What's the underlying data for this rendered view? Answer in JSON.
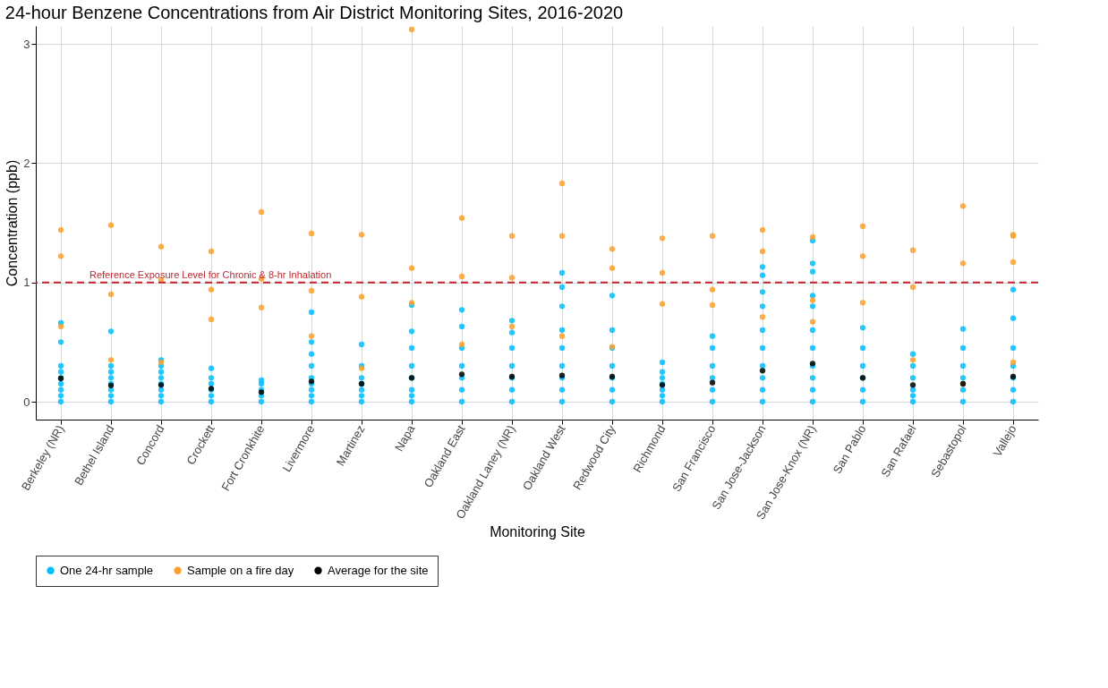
{
  "chart_data": {
    "type": "scatter",
    "title": "24-hour Benzene Concentrations from Air District Monitoring Sites, 2016-2020",
    "xlabel": "Monitoring Site",
    "ylabel": "Concentration (ppb)",
    "categories": [
      "Berkeley (NR)",
      "Bethel Island",
      "Concord",
      "Crockett",
      "Fort Cronkhite",
      "Livermore",
      "Martinez",
      "Napa",
      "Oakland East",
      "Oakland Laney (NR)",
      "Oakland West",
      "Redwood City",
      "Richmond",
      "San Francisco",
      "San Jose-Jackson",
      "San Jose-Knox (NR)",
      "San Pablo",
      "San Rafael",
      "Sebastopol",
      "Vallejo"
    ],
    "ylim": [
      -0.15,
      3.15
    ],
    "yticks": [
      0,
      1,
      2,
      3
    ],
    "grid": true,
    "legend": "bottom",
    "marker": "circle",
    "ref_lines": [
      {
        "axis": "y",
        "value": 1,
        "label": "Reference Exposure Level for Chronic & 8-hr Inhalation",
        "color": "#c0282d",
        "line_style": "dashed"
      }
    ],
    "series": [
      {
        "name": "One 24-hr sample",
        "color": "#00bfff",
        "x": [
          "Berkeley (NR)",
          "Berkeley (NR)",
          "Berkeley (NR)",
          "Berkeley (NR)",
          "Berkeley (NR)",
          "Berkeley (NR)",
          "Berkeley (NR)",
          "Berkeley (NR)",
          "Berkeley (NR)",
          "Bethel Island",
          "Bethel Island",
          "Bethel Island",
          "Bethel Island",
          "Bethel Island",
          "Bethel Island",
          "Bethel Island",
          "Bethel Island",
          "Concord",
          "Concord",
          "Concord",
          "Concord",
          "Concord",
          "Concord",
          "Concord",
          "Concord",
          "Crockett",
          "Crockett",
          "Crockett",
          "Crockett",
          "Crockett",
          "Crockett",
          "Fort Cronkhite",
          "Fort Cronkhite",
          "Fort Cronkhite",
          "Fort Cronkhite",
          "Fort Cronkhite",
          "Livermore",
          "Livermore",
          "Livermore",
          "Livermore",
          "Livermore",
          "Livermore",
          "Livermore",
          "Livermore",
          "Livermore",
          "Martinez",
          "Martinez",
          "Martinez",
          "Martinez",
          "Martinez",
          "Martinez",
          "Martinez",
          "Napa",
          "Napa",
          "Napa",
          "Napa",
          "Napa",
          "Napa",
          "Napa",
          "Napa",
          "Oakland East",
          "Oakland East",
          "Oakland East",
          "Oakland East",
          "Oakland East",
          "Oakland East",
          "Oakland East",
          "Oakland Laney (NR)",
          "Oakland Laney (NR)",
          "Oakland Laney (NR)",
          "Oakland Laney (NR)",
          "Oakland Laney (NR)",
          "Oakland Laney (NR)",
          "Oakland Laney (NR)",
          "Oakland West",
          "Oakland West",
          "Oakland West",
          "Oakland West",
          "Oakland West",
          "Oakland West",
          "Oakland West",
          "Oakland West",
          "Oakland West",
          "Redwood City",
          "Redwood City",
          "Redwood City",
          "Redwood City",
          "Redwood City",
          "Redwood City",
          "Redwood City",
          "Richmond",
          "Richmond",
          "Richmond",
          "Richmond",
          "Richmond",
          "Richmond",
          "Richmond",
          "San Francisco",
          "San Francisco",
          "San Francisco",
          "San Francisco",
          "San Francisco",
          "San Francisco",
          "San Jose-Jackson",
          "San Jose-Jackson",
          "San Jose-Jackson",
          "San Jose-Jackson",
          "San Jose-Jackson",
          "San Jose-Jackson",
          "San Jose-Jackson",
          "San Jose-Jackson",
          "San Jose-Jackson",
          "San Jose-Jackson",
          "San Jose-Knox (NR)",
          "San Jose-Knox (NR)",
          "San Jose-Knox (NR)",
          "San Jose-Knox (NR)",
          "San Jose-Knox (NR)",
          "San Jose-Knox (NR)",
          "San Jose-Knox (NR)",
          "San Jose-Knox (NR)",
          "San Jose-Knox (NR)",
          "San Jose-Knox (NR)",
          "San Jose-Knox (NR)",
          "San Pablo",
          "San Pablo",
          "San Pablo",
          "San Pablo",
          "San Pablo",
          "San Pablo",
          "San Rafael",
          "San Rafael",
          "San Rafael",
          "San Rafael",
          "San Rafael",
          "San Rafael",
          "Sebastopol",
          "Sebastopol",
          "Sebastopol",
          "Sebastopol",
          "Sebastopol",
          "Sebastopol",
          "Vallejo",
          "Vallejo",
          "Vallejo",
          "Vallejo",
          "Vallejo",
          "Vallejo",
          "Vallejo"
        ],
        "values": [
          0,
          0.05,
          0.1,
          0.15,
          0.2,
          0.25,
          0.3,
          0.5,
          0.66,
          0,
          0.05,
          0.1,
          0.15,
          0.2,
          0.25,
          0.3,
          0.59,
          0,
          0.05,
          0.1,
          0.15,
          0.2,
          0.25,
          0.3,
          0.35,
          0,
          0.05,
          0.1,
          0.15,
          0.2,
          0.28,
          0,
          0.05,
          0.1,
          0.15,
          0.18,
          0,
          0.05,
          0.1,
          0.15,
          0.2,
          0.3,
          0.4,
          0.5,
          0.75,
          0,
          0.05,
          0.1,
          0.15,
          0.2,
          0.3,
          0.48,
          0,
          0.05,
          0.1,
          0.2,
          0.3,
          0.45,
          0.59,
          0.81,
          0,
          0.1,
          0.2,
          0.3,
          0.45,
          0.63,
          0.77,
          0,
          0.1,
          0.2,
          0.3,
          0.45,
          0.58,
          0.68,
          0,
          0.1,
          0.2,
          0.3,
          0.45,
          0.6,
          0.8,
          0.96,
          1.08,
          0,
          0.1,
          0.2,
          0.3,
          0.45,
          0.6,
          0.89,
          0,
          0.05,
          0.1,
          0.15,
          0.2,
          0.25,
          0.33,
          0,
          0.1,
          0.2,
          0.3,
          0.45,
          0.55,
          0,
          0.1,
          0.2,
          0.3,
          0.45,
          0.6,
          0.8,
          0.92,
          1.06,
          1.13,
          0,
          0.1,
          0.2,
          0.3,
          0.45,
          0.6,
          0.8,
          0.89,
          1.09,
          1.16,
          1.35,
          0,
          0.1,
          0.2,
          0.3,
          0.45,
          0.62,
          0,
          0.05,
          0.1,
          0.2,
          0.3,
          0.4,
          0,
          0.1,
          0.2,
          0.3,
          0.45,
          0.61,
          0,
          0.1,
          0.2,
          0.3,
          0.45,
          0.7,
          0.94
        ]
      },
      {
        "name": "Sample on a fire day",
        "color": "#ff9f2a",
        "x": [
          "Berkeley (NR)",
          "Berkeley (NR)",
          "Berkeley (NR)",
          "Bethel Island",
          "Bethel Island",
          "Bethel Island",
          "Concord",
          "Concord",
          "Concord",
          "Crockett",
          "Crockett",
          "Crockett",
          "Fort Cronkhite",
          "Fort Cronkhite",
          "Fort Cronkhite",
          "Livermore",
          "Livermore",
          "Livermore",
          "Martinez",
          "Martinez",
          "Martinez",
          "Napa",
          "Napa",
          "Napa",
          "Oakland East",
          "Oakland East",
          "Oakland East",
          "Oakland Laney (NR)",
          "Oakland Laney (NR)",
          "Oakland Laney (NR)",
          "Oakland West",
          "Oakland West",
          "Oakland West",
          "Redwood City",
          "Redwood City",
          "Redwood City",
          "Richmond",
          "Richmond",
          "Richmond",
          "San Francisco",
          "San Francisco",
          "San Francisco",
          "San Jose-Jackson",
          "San Jose-Jackson",
          "San Jose-Jackson",
          "San Jose-Knox (NR)",
          "San Jose-Knox (NR)",
          "San Jose-Knox (NR)",
          "San Pablo",
          "San Pablo",
          "San Pablo",
          "San Rafael",
          "San Rafael",
          "San Rafael",
          "Sebastopol",
          "Sebastopol",
          "Sebastopol",
          "Vallejo",
          "Vallejo",
          "Vallejo",
          "Vallejo"
        ],
        "values": [
          1.44,
          1.22,
          0.63,
          1.48,
          0.9,
          0.35,
          1.3,
          1.02,
          0.33,
          1.26,
          0.94,
          0.69,
          1.59,
          1.03,
          0.79,
          1.41,
          0.93,
          0.55,
          1.4,
          0.88,
          0.28,
          3.12,
          1.12,
          0.83,
          1.54,
          1.05,
          0.48,
          1.39,
          1.04,
          0.63,
          1.83,
          1.39,
          0.55,
          1.28,
          1.12,
          0.46,
          1.37,
          1.08,
          0.82,
          1.39,
          0.94,
          0.81,
          1.44,
          1.26,
          0.71,
          1.38,
          0.85,
          0.67,
          1.47,
          1.22,
          0.83,
          1.27,
          0.96,
          0.35,
          1.64,
          1.16,
          0.15,
          1.4,
          1.39,
          1.17,
          0.33
        ]
      },
      {
        "name": "Average for the site",
        "color": "#000000",
        "x": [
          "Berkeley (NR)",
          "Bethel Island",
          "Concord",
          "Crockett",
          "Fort Cronkhite",
          "Livermore",
          "Martinez",
          "Napa",
          "Oakland East",
          "Oakland Laney (NR)",
          "Oakland West",
          "Redwood City",
          "Richmond",
          "San Francisco",
          "San Jose-Jackson",
          "San Jose-Knox (NR)",
          "San Pablo",
          "San Rafael",
          "Sebastopol",
          "Vallejo"
        ],
        "values": [
          0.195,
          0.136,
          0.14,
          0.11,
          0.08,
          0.17,
          0.15,
          0.2,
          0.23,
          0.21,
          0.22,
          0.21,
          0.14,
          0.16,
          0.26,
          0.32,
          0.2,
          0.14,
          0.15,
          0.21
        ]
      }
    ]
  }
}
